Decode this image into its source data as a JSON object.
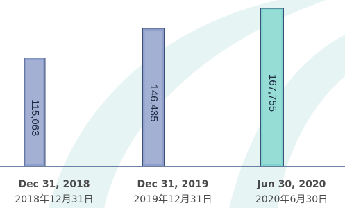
{
  "chart_data": {
    "type": "bar",
    "categories": [
      "Dec 31, 2018",
      "Dec 31, 2019",
      "Jun 30, 2020"
    ],
    "category_sublabels": [
      "2018年12月31日",
      "2019年12月31日",
      "2020年6月30日"
    ],
    "values": [
      115063,
      146435,
      167755
    ],
    "value_labels": [
      "115,063",
      "146,435",
      "167,755"
    ],
    "colors": [
      "#8f9fcb",
      "#8f9fcb",
      "#7fd6cd"
    ]
  }
}
